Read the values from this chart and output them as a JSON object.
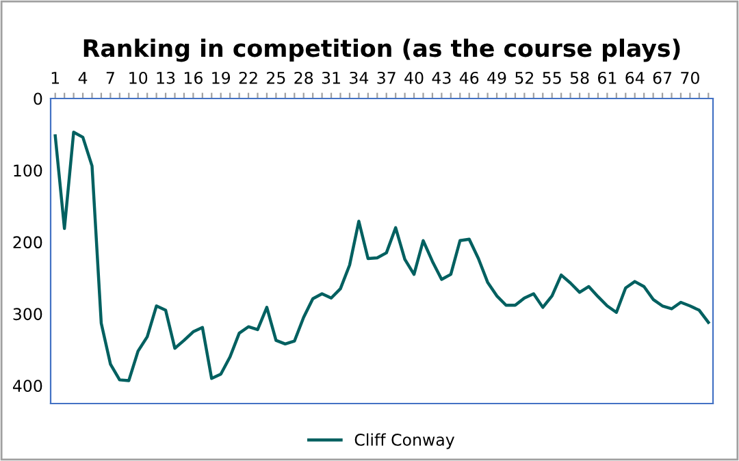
{
  "chart_data": {
    "type": "line",
    "title": "Ranking in competition (as the course plays)",
    "categories": [
      "1",
      null,
      null,
      "4",
      null,
      null,
      "7",
      null,
      null,
      "10",
      null,
      null,
      "13",
      null,
      null,
      "16",
      null,
      null,
      "19",
      null,
      null,
      "22",
      null,
      null,
      "25",
      null,
      null,
      "28",
      null,
      null,
      "31",
      null,
      null,
      "34",
      null,
      null,
      "37",
      null,
      null,
      "40",
      null,
      null,
      "43",
      null,
      null,
      "46",
      null,
      null,
      "49",
      null,
      null,
      "52",
      null,
      null,
      "55",
      null,
      null,
      "58",
      null,
      null,
      "61",
      null,
      null,
      "64",
      null,
      null,
      "67",
      null,
      null,
      "70",
      null,
      null
    ],
    "series": [
      {
        "name": "Cliff Conway",
        "color": "#006060",
        "values": [
          52,
          181,
          47,
          54,
          94,
          313,
          370,
          392,
          393,
          352,
          332,
          289,
          295,
          348,
          337,
          325,
          319,
          390,
          384,
          360,
          327,
          318,
          322,
          291,
          337,
          342,
          338,
          305,
          279,
          272,
          278,
          265,
          232,
          171,
          223,
          222,
          215,
          180,
          224,
          245,
          198,
          227,
          252,
          245,
          198,
          196,
          223,
          256,
          275,
          288,
          288,
          278,
          272,
          291,
          275,
          246,
          257,
          270,
          262,
          276,
          289,
          298,
          264,
          255,
          262,
          280,
          289,
          293,
          284,
          289,
          295,
          312
        ]
      }
    ],
    "ylim": [
      425,
      0
    ],
    "yticks": [
      0,
      100,
      200,
      300,
      400
    ],
    "grid": false,
    "legend": "bottom",
    "marker": "none",
    "line_style": "solid"
  }
}
